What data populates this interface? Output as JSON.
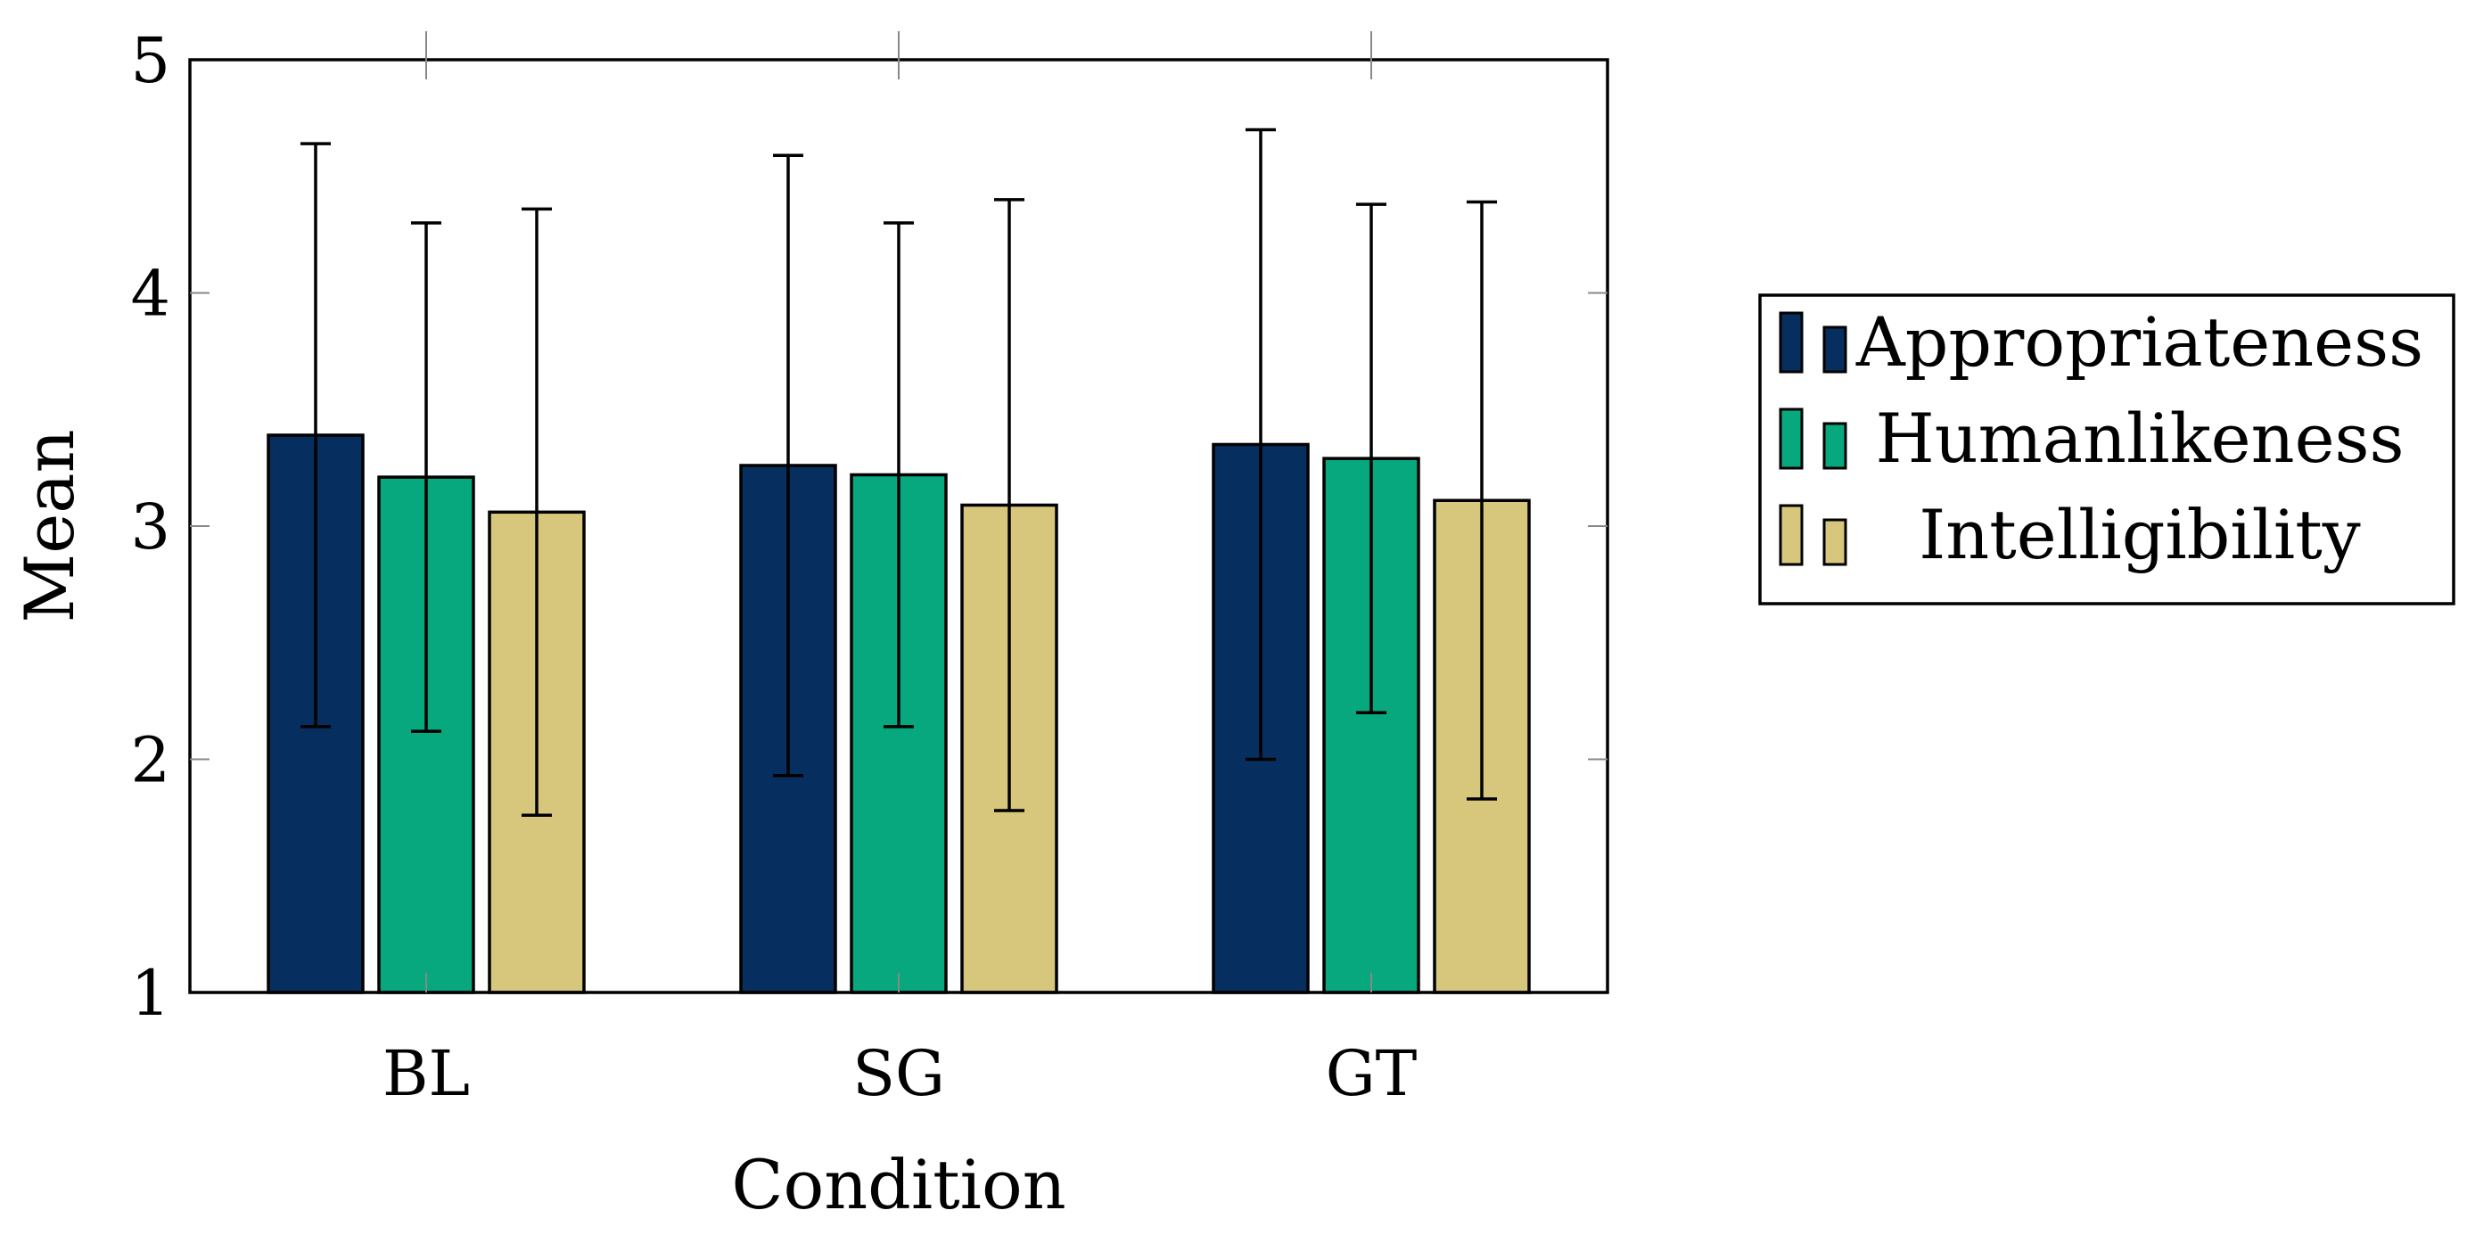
{
  "chart_data": {
    "type": "bar",
    "title": "",
    "xlabel": "Condition",
    "ylabel": "Mean",
    "ylim": [
      1,
      5
    ],
    "yticks": [
      1,
      2,
      3,
      4,
      5
    ],
    "grid": false,
    "legend_position": "right",
    "categories": [
      "BL",
      "SG",
      "GT"
    ],
    "series": [
      {
        "name": "Appropriateness",
        "color": "#062f5f",
        "values": [
          3.39,
          3.26,
          3.35
        ],
        "error_low": [
          2.14,
          1.93,
          2.0
        ],
        "error_high": [
          4.64,
          4.59,
          4.7
        ]
      },
      {
        "name": "Humanlikeness",
        "color": "#07a87e",
        "values": [
          3.21,
          3.22,
          3.29
        ],
        "error_low": [
          2.12,
          2.14,
          2.2
        ],
        "error_high": [
          4.3,
          4.3,
          4.38
        ]
      },
      {
        "name": "Intelligibility",
        "color": "#d7c77c",
        "values": [
          3.06,
          3.09,
          3.11
        ],
        "error_low": [
          1.76,
          1.78,
          1.83
        ],
        "error_high": [
          4.36,
          4.4,
          4.39
        ]
      }
    ]
  }
}
